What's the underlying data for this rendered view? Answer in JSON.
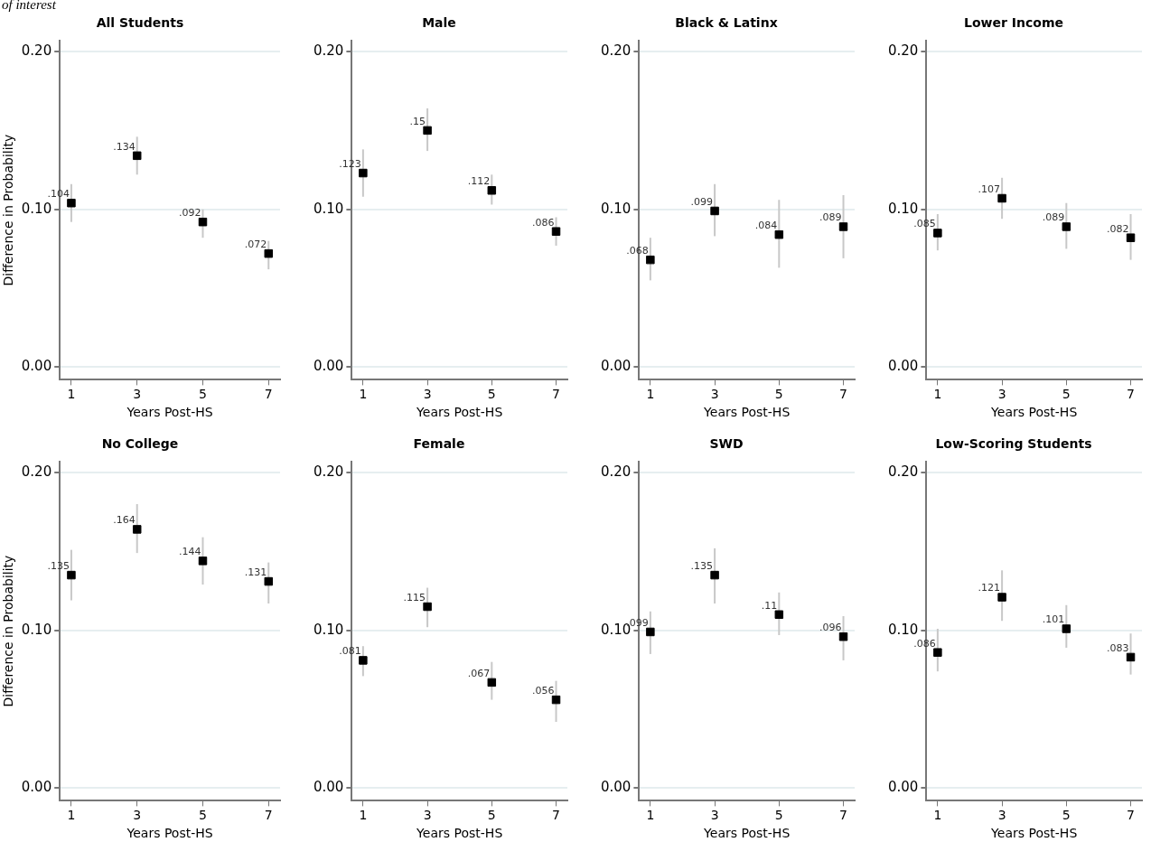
{
  "chart_data": [
    {
      "type": "scatter",
      "title": "All Students",
      "annotations": [
        "of interest"
      ],
      "xlabel": "Years Post-HS",
      "ylabel": "Difference in Probability",
      "x": [
        1,
        3,
        5,
        7
      ],
      "values": [
        0.104,
        0.134,
        0.092,
        0.072
      ],
      "value_labels": [
        ".104",
        ".134",
        ".092",
        ".072"
      ],
      "errors": [
        [
          0.092,
          0.116
        ],
        [
          0.122,
          0.146
        ],
        [
          0.082,
          0.1
        ],
        [
          0.062,
          0.08
        ]
      ],
      "color": "#000000",
      "marker": "square",
      "grid": "y",
      "xlim": [
        0.65,
        7.35
      ],
      "xticks": [
        1,
        3,
        5,
        7
      ],
      "ylim": [
        -0.008,
        0.207
      ],
      "yticks": [
        {
          "value": 0,
          "label": "0.00"
        },
        {
          "value": 0.1,
          "label": "0.10"
        },
        {
          "value": 0.2,
          "label": "0.20"
        }
      ]
    },
    {
      "type": "scatter",
      "title": "Male",
      "xlabel": "Years Post-HS",
      "x": [
        1,
        3,
        5,
        7
      ],
      "values": [
        0.123,
        0.15,
        0.112,
        0.086
      ],
      "value_labels": [
        ".123",
        ".15",
        ".112",
        ".086"
      ],
      "errors": [
        [
          0.108,
          0.138
        ],
        [
          0.137,
          0.164
        ],
        [
          0.103,
          0.122
        ],
        [
          0.077,
          0.095
        ]
      ],
      "color": "#000000",
      "marker": "square",
      "grid": "y",
      "xlim": [
        0.65,
        7.35
      ],
      "xticks": [
        1,
        3,
        5,
        7
      ],
      "ylim": [
        -0.008,
        0.207
      ],
      "yticks": [
        {
          "value": 0,
          "label": "0.00"
        },
        {
          "value": 0.1,
          "label": "0.10"
        },
        {
          "value": 0.2,
          "label": "0.20"
        }
      ]
    },
    {
      "type": "scatter",
      "title": "Black & Latinx",
      "xlabel": "Years Post-HS",
      "x": [
        1,
        3,
        5,
        7
      ],
      "values": [
        0.068,
        0.099,
        0.084,
        0.089
      ],
      "value_labels": [
        ".068",
        ".099",
        ".084",
        ".089"
      ],
      "errors": [
        [
          0.055,
          0.082
        ],
        [
          0.083,
          0.116
        ],
        [
          0.063,
          0.106
        ],
        [
          0.069,
          0.109
        ]
      ],
      "color": "#000000",
      "marker": "square",
      "grid": "y",
      "xlim": [
        0.65,
        7.35
      ],
      "xticks": [
        1,
        3,
        5,
        7
      ],
      "ylim": [
        -0.008,
        0.207
      ],
      "yticks": [
        {
          "value": 0,
          "label": "0.00"
        },
        {
          "value": 0.1,
          "label": "0.10"
        },
        {
          "value": 0.2,
          "label": "0.20"
        }
      ]
    },
    {
      "type": "scatter",
      "title": "Lower Income",
      "xlabel": "Years Post-HS",
      "x": [
        1,
        3,
        5,
        7
      ],
      "values": [
        0.085,
        0.107,
        0.089,
        0.082
      ],
      "value_labels": [
        ".085",
        ".107",
        ".089",
        ".082"
      ],
      "errors": [
        [
          0.074,
          0.097
        ],
        [
          0.094,
          0.12
        ],
        [
          0.075,
          0.104
        ],
        [
          0.068,
          0.097
        ]
      ],
      "color": "#000000",
      "marker": "square",
      "grid": "y",
      "xlim": [
        0.65,
        7.35
      ],
      "xticks": [
        1,
        3,
        5,
        7
      ],
      "ylim": [
        -0.008,
        0.207
      ],
      "yticks": [
        {
          "value": 0,
          "label": "0.00"
        },
        {
          "value": 0.1,
          "label": "0.10"
        },
        {
          "value": 0.2,
          "label": "0.20"
        }
      ]
    },
    {
      "type": "scatter",
      "title": "No College",
      "xlabel": "Years Post-HS",
      "ylabel": "Difference in Probability",
      "x": [
        1,
        3,
        5,
        7
      ],
      "values": [
        0.135,
        0.164,
        0.144,
        0.131
      ],
      "value_labels": [
        ".135",
        ".164",
        ".144",
        ".131"
      ],
      "errors": [
        [
          0.119,
          0.151
        ],
        [
          0.149,
          0.18
        ],
        [
          0.129,
          0.159
        ],
        [
          0.117,
          0.143
        ]
      ],
      "color": "#000000",
      "marker": "square",
      "grid": "y",
      "xlim": [
        0.65,
        7.35
      ],
      "xticks": [
        1,
        3,
        5,
        7
      ],
      "ylim": [
        -0.008,
        0.207
      ],
      "yticks": [
        {
          "value": 0,
          "label": "0.00"
        },
        {
          "value": 0.1,
          "label": "0.10"
        },
        {
          "value": 0.2,
          "label": "0.20"
        }
      ]
    },
    {
      "type": "scatter",
      "title": "Female",
      "xlabel": "Years Post-HS",
      "x": [
        1,
        3,
        5,
        7
      ],
      "values": [
        0.081,
        0.115,
        0.067,
        0.056
      ],
      "value_labels": [
        ".081",
        ".115",
        ".067",
        ".056"
      ],
      "errors": [
        [
          0.071,
          0.09
        ],
        [
          0.102,
          0.127
        ],
        [
          0.056,
          0.08
        ],
        [
          0.042,
          0.068
        ]
      ],
      "color": "#000000",
      "marker": "square",
      "grid": "y",
      "xlim": [
        0.65,
        7.35
      ],
      "xticks": [
        1,
        3,
        5,
        7
      ],
      "ylim": [
        -0.008,
        0.207
      ],
      "yticks": [
        {
          "value": 0,
          "label": "0.00"
        },
        {
          "value": 0.1,
          "label": "0.10"
        },
        {
          "value": 0.2,
          "label": "0.20"
        }
      ]
    },
    {
      "type": "scatter",
      "title": "SWD",
      "xlabel": "Years Post-HS",
      "x": [
        1,
        3,
        5,
        7
      ],
      "values": [
        0.099,
        0.135,
        0.11,
        0.096
      ],
      "value_labels": [
        ".099",
        ".135",
        ".11",
        ".096"
      ],
      "errors": [
        [
          0.085,
          0.112
        ],
        [
          0.117,
          0.152
        ],
        [
          0.097,
          0.124
        ],
        [
          0.081,
          0.109
        ]
      ],
      "color": "#000000",
      "marker": "square",
      "grid": "y",
      "xlim": [
        0.65,
        7.35
      ],
      "xticks": [
        1,
        3,
        5,
        7
      ],
      "ylim": [
        -0.008,
        0.207
      ],
      "yticks": [
        {
          "value": 0,
          "label": "0.00"
        },
        {
          "value": 0.1,
          "label": "0.10"
        },
        {
          "value": 0.2,
          "label": "0.20"
        }
      ]
    },
    {
      "type": "scatter",
      "title": "Low-Scoring Students",
      "xlabel": "Years Post-HS",
      "x": [
        1,
        3,
        5,
        7
      ],
      "values": [
        0.086,
        0.121,
        0.101,
        0.083
      ],
      "value_labels": [
        ".086",
        ".121",
        ".101",
        ".083"
      ],
      "errors": [
        [
          0.074,
          0.101
        ],
        [
          0.106,
          0.138
        ],
        [
          0.089,
          0.116
        ],
        [
          0.072,
          0.098
        ]
      ],
      "color": "#000000",
      "marker": "square",
      "grid": "y",
      "xlim": [
        0.65,
        7.35
      ],
      "xticks": [
        1,
        3,
        5,
        7
      ],
      "ylim": [
        -0.008,
        0.207
      ],
      "yticks": [
        {
          "value": 0,
          "label": "0.00"
        },
        {
          "value": 0.1,
          "label": "0.10"
        },
        {
          "value": 0.2,
          "label": "0.20"
        }
      ]
    }
  ]
}
